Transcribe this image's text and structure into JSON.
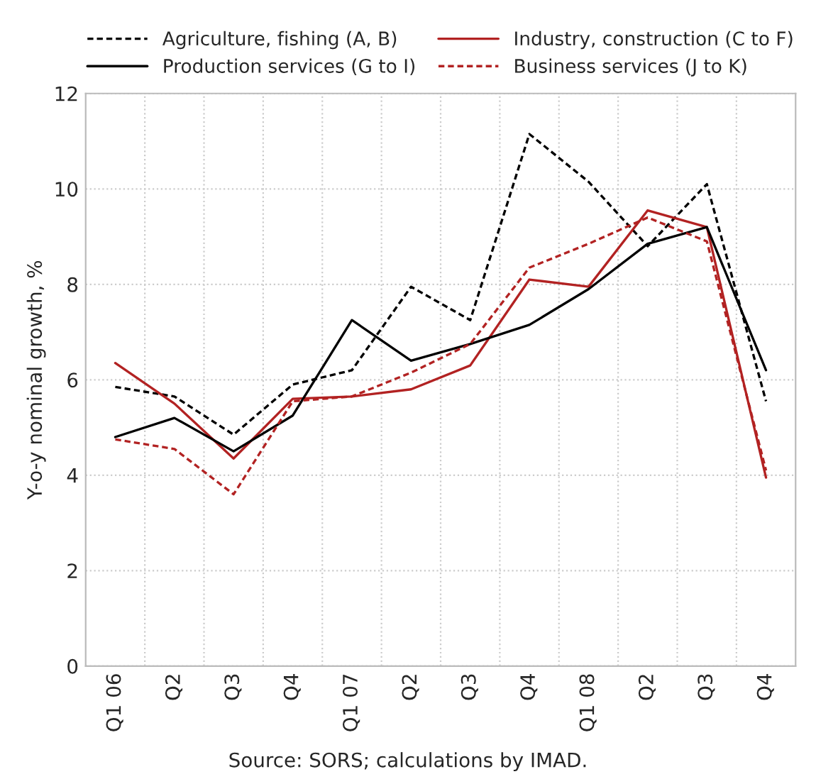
{
  "chart_data": {
    "type": "line",
    "ylabel": "Y-o-y nominal growth, %",
    "categories": [
      "Q1 06",
      "Q2",
      "Q3",
      "Q4",
      "Q1 07",
      "Q2",
      "Q3",
      "Q4",
      "Q1 08",
      "Q2",
      "Q3",
      "Q4"
    ],
    "series": [
      {
        "name": "Agriculture, fishing (A, B)",
        "color": "#000000",
        "line_style": "dashed",
        "values": [
          5.85,
          5.65,
          4.85,
          5.9,
          6.2,
          7.95,
          7.25,
          11.15,
          10.15,
          8.8,
          10.1,
          5.55
        ]
      },
      {
        "name": "Industry, construction (C to F)",
        "color": "#b22222",
        "line_style": "solid",
        "values": [
          6.35,
          5.5,
          4.35,
          5.6,
          5.65,
          5.8,
          6.3,
          8.1,
          7.95,
          9.55,
          9.2,
          3.95
        ]
      },
      {
        "name": "Production services (G to I)",
        "color": "#000000",
        "line_style": "solid",
        "values": [
          4.8,
          5.2,
          4.5,
          5.25,
          7.25,
          6.4,
          6.75,
          7.15,
          7.9,
          8.85,
          9.2,
          6.2
        ]
      },
      {
        "name": "Business services (J to K)",
        "color": "#b22222",
        "line_style": "dashed",
        "values": [
          4.75,
          4.55,
          3.6,
          5.55,
          5.65,
          6.15,
          6.75,
          8.35,
          8.85,
          9.4,
          8.9,
          4.1
        ]
      }
    ],
    "ylim": [
      0,
      12
    ],
    "yticks": [
      0,
      2,
      4,
      6,
      8,
      10,
      12
    ],
    "grid": true,
    "legend": "top",
    "marker": "none",
    "annotations": [
      "Source: SORS; calculations by IMAD."
    ]
  }
}
